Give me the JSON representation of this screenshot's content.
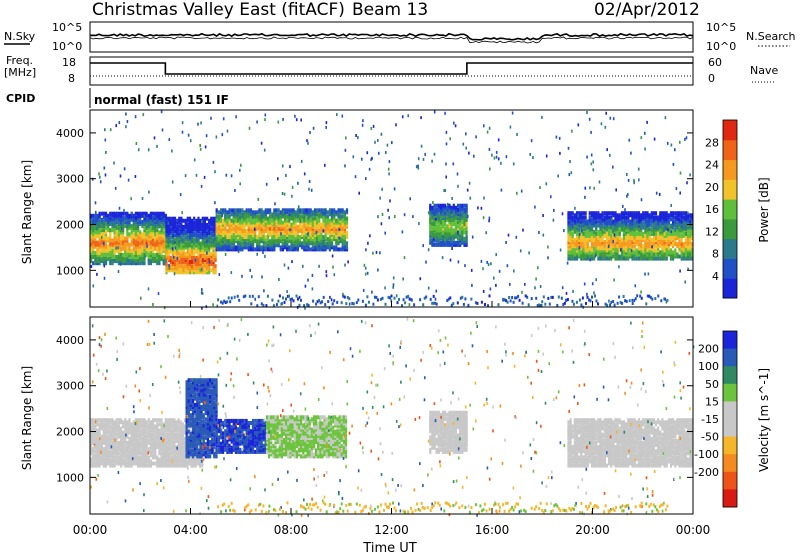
{
  "header": {
    "title": "Christmas Valley East (fitACF)",
    "beam": "Beam 13",
    "date": "02/Apr/2012"
  },
  "noise_panel": {
    "left_label": "N.Sky",
    "left_ticks": [
      "10^5",
      "10^0"
    ],
    "right_label": "N.Search",
    "right_ticks": [
      "10^5",
      "10^0"
    ]
  },
  "freq_panel": {
    "left_label_1": "Freq.",
    "left_label_2": "[MHz]",
    "left_ticks": [
      "18",
      "8"
    ],
    "right_label": "Nave",
    "right_ticks": [
      "60",
      "0"
    ]
  },
  "cpid": {
    "label": "CPID",
    "program": "normal (fast) 151 IF"
  },
  "colors": {
    "power_scale": [
      "#1a24d8",
      "#2050c8",
      "#2a7a8c",
      "#3a9a3c",
      "#5fbf3a",
      "#f2c22a",
      "#f59a1e",
      "#f06418",
      "#e02810"
    ],
    "velocity_scale": [
      "#1a24d8",
      "#2a5ab8",
      "#2f8a64",
      "#6cc43c",
      "#c8c8c8",
      "#c8c8c8",
      "#f7b52a",
      "#f58a1e",
      "#ee5418",
      "#d81a10"
    ]
  },
  "chart_data": [
    {
      "type": "heatmap",
      "quantity": "power",
      "ylabel": "Slant Range [km]",
      "xlabel": "Time UT",
      "x_ticks": [
        "00:00",
        "04:00",
        "08:00",
        "12:00",
        "16:00",
        "20:00",
        "00:00"
      ],
      "y_ticks": [
        "1000",
        "2000",
        "3000",
        "4000"
      ],
      "ylim": [
        200,
        4500
      ],
      "xlim_hours": [
        0,
        24
      ],
      "colorbar_label": "Power [dB]",
      "colorbar_ticks": [
        "4",
        "8",
        "12",
        "16",
        "20",
        "24",
        "28"
      ],
      "colorbar_range": [
        0,
        32
      ],
      "echo_regions": [
        {
          "t0": 0.0,
          "t1": 3.0,
          "r0": 1200,
          "r1": 2300,
          "core": 1650,
          "peak": 26
        },
        {
          "t0": 3.0,
          "t1": 5.0,
          "r0": 1000,
          "r1": 2200,
          "core": 1250,
          "peak": 28
        },
        {
          "t0": 5.0,
          "t1": 10.2,
          "r0": 1500,
          "r1": 2400,
          "core": 1950,
          "peak": 24
        },
        {
          "t0": 13.5,
          "t1": 15.0,
          "r0": 1600,
          "r1": 2500,
          "core": 2000,
          "peak": 18
        },
        {
          "t0": 19.0,
          "t1": 24.0,
          "r0": 1300,
          "r1": 2300,
          "core": 1650,
          "peak": 24
        }
      ]
    },
    {
      "type": "heatmap",
      "quantity": "velocity",
      "ylabel": "Slant Range [km]",
      "xlabel": "Time UT",
      "x_ticks": [
        "00:00",
        "04:00",
        "08:00",
        "12:00",
        "16:00",
        "20:00",
        "00:00"
      ],
      "y_ticks": [
        "1000",
        "2000",
        "3000",
        "4000"
      ],
      "ylim": [
        200,
        4500
      ],
      "colorbar_label": "Velocity [m s^-1]",
      "colorbar_ticks": [
        "200",
        "100",
        "50",
        "15",
        "-15",
        "-50",
        "-100",
        "-200"
      ],
      "colorbar_range": [
        -250,
        250
      ],
      "echo_regions": [
        {
          "t0": 0.0,
          "t1": 4.5,
          "r0": 1300,
          "r1": 2300,
          "v": 0
        },
        {
          "t0": 3.8,
          "t1": 5.0,
          "r0": 1500,
          "r1": 3200,
          "v": 180
        },
        {
          "t0": 5.0,
          "t1": 7.0,
          "r0": 1600,
          "r1": 2300,
          "v": 200
        },
        {
          "t0": 7.0,
          "t1": 10.2,
          "r0": 1500,
          "r1": 2400,
          "v": 60
        },
        {
          "t0": 13.5,
          "t1": 15.0,
          "r0": 1600,
          "r1": 2500,
          "v": 20
        },
        {
          "t0": 19.0,
          "t1": 24.0,
          "r0": 1300,
          "r1": 2300,
          "v": 0
        }
      ]
    }
  ]
}
